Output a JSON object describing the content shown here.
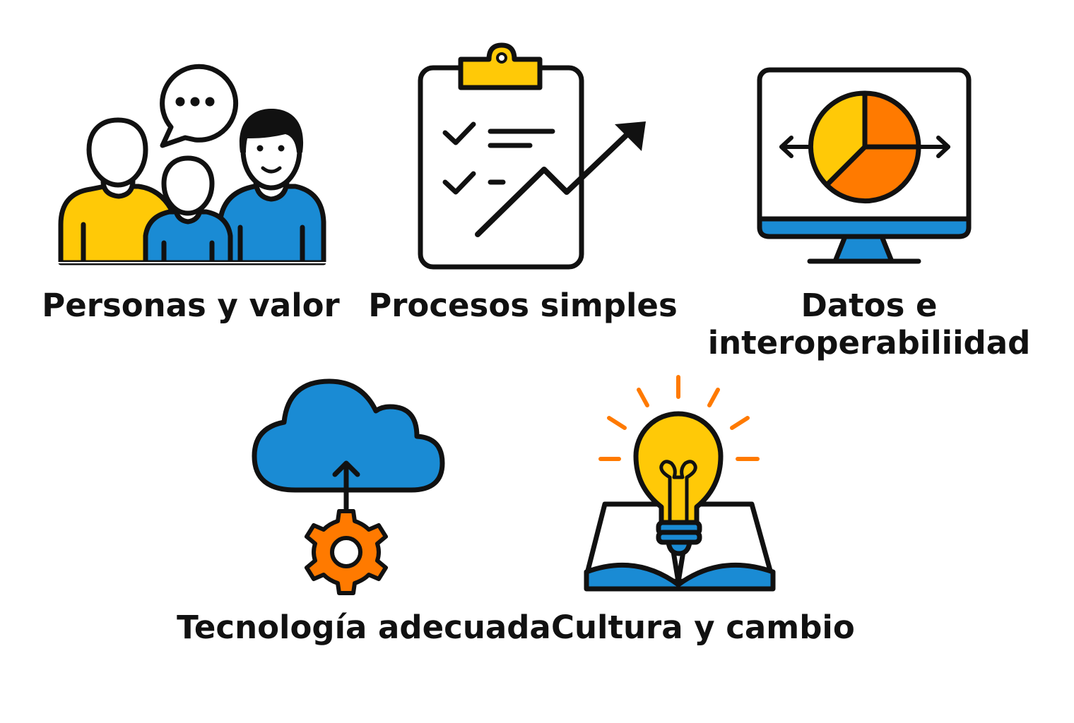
{
  "colors": {
    "outline": "#111111",
    "yellow": "#FFC907",
    "blue": "#1A8BD4",
    "orange": "#FF7A00",
    "background": "#FFFFFF"
  },
  "items": [
    {
      "label": "Personas y valor",
      "icon": "people-speech-bubble-icon"
    },
    {
      "label": "Procesos simples",
      "icon": "clipboard-checklist-trend-icon"
    },
    {
      "label_lines": [
        "Datos e",
        "interoperabiliidad"
      ],
      "icon": "monitor-pie-chart-icon"
    },
    {
      "label": "Tecnología adecuada",
      "icon": "cloud-gear-icon"
    },
    {
      "label": "Cultura y cambio",
      "icon": "lightbulb-open-book-icon"
    }
  ]
}
